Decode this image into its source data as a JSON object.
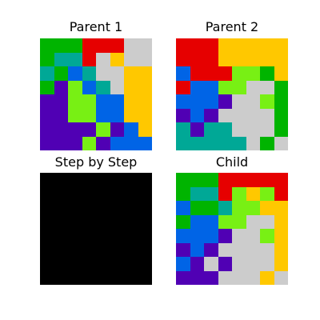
{
  "palette": {
    "G": "#00b400",
    "T": "#00a896",
    "R": "#e60000",
    "L": "#cccccc",
    "Y": "#ffc800",
    "B": "#0064e6",
    "P": "#5000b4",
    "M": "#78f014",
    "K": "#000000"
  },
  "panels": {
    "parent1": {
      "title": "Parent 1",
      "grid": [
        [
          "G",
          "G",
          "G",
          "R",
          "R",
          "R",
          "L",
          "L"
        ],
        [
          "G",
          "T",
          "T",
          "R",
          "L",
          "Y",
          "L",
          "L"
        ],
        [
          "T",
          "G",
          "B",
          "T",
          "L",
          "L",
          "Y",
          "Y"
        ],
        [
          "G",
          "P",
          "M",
          "B",
          "T",
          "L",
          "Y",
          "Y"
        ],
        [
          "P",
          "P",
          "M",
          "M",
          "B",
          "B",
          "Y",
          "Y"
        ],
        [
          "P",
          "P",
          "M",
          "M",
          "B",
          "B",
          "Y",
          "Y"
        ],
        [
          "P",
          "P",
          "P",
          "P",
          "M",
          "P",
          "B",
          "Y"
        ],
        [
          "P",
          "P",
          "P",
          "M",
          "P",
          "B",
          "B",
          "B"
        ]
      ]
    },
    "parent2": {
      "title": "Parent 2",
      "grid": [
        [
          "R",
          "R",
          "R",
          "Y",
          "Y",
          "Y",
          "Y",
          "Y"
        ],
        [
          "R",
          "R",
          "R",
          "Y",
          "Y",
          "Y",
          "Y",
          "Y"
        ],
        [
          "B",
          "R",
          "R",
          "R",
          "M",
          "M",
          "G",
          "Y"
        ],
        [
          "R",
          "B",
          "B",
          "M",
          "M",
          "L",
          "L",
          "G"
        ],
        [
          "B",
          "B",
          "B",
          "P",
          "L",
          "L",
          "M",
          "G"
        ],
        [
          "P",
          "B",
          "P",
          "L",
          "L",
          "L",
          "L",
          "G"
        ],
        [
          "T",
          "P",
          "T",
          "T",
          "L",
          "L",
          "L",
          "G"
        ],
        [
          "T",
          "T",
          "T",
          "T",
          "T",
          "L",
          "G",
          "L"
        ]
      ]
    },
    "step": {
      "title": "Step by Step",
      "grid": [
        [
          "K",
          "K",
          "K",
          "K",
          "K",
          "K",
          "K",
          "K"
        ],
        [
          "K",
          "K",
          "K",
          "K",
          "K",
          "K",
          "K",
          "K"
        ],
        [
          "K",
          "K",
          "K",
          "K",
          "K",
          "K",
          "K",
          "K"
        ],
        [
          "K",
          "K",
          "K",
          "K",
          "K",
          "K",
          "K",
          "K"
        ],
        [
          "K",
          "K",
          "K",
          "K",
          "K",
          "K",
          "K",
          "K"
        ],
        [
          "K",
          "K",
          "K",
          "K",
          "K",
          "K",
          "K",
          "K"
        ],
        [
          "K",
          "K",
          "K",
          "K",
          "K",
          "K",
          "K",
          "K"
        ],
        [
          "K",
          "K",
          "K",
          "K",
          "K",
          "K",
          "K",
          "K"
        ]
      ]
    },
    "child": {
      "title": "Child",
      "grid": [
        [
          "G",
          "G",
          "G",
          "R",
          "R",
          "R",
          "R",
          "R"
        ],
        [
          "G",
          "T",
          "T",
          "R",
          "M",
          "Y",
          "M",
          "R"
        ],
        [
          "B",
          "G",
          "G",
          "T",
          "M",
          "M",
          "Y",
          "Y"
        ],
        [
          "G",
          "B",
          "B",
          "M",
          "M",
          "L",
          "L",
          "Y"
        ],
        [
          "B",
          "B",
          "B",
          "P",
          "L",
          "L",
          "M",
          "Y"
        ],
        [
          "P",
          "B",
          "P",
          "L",
          "L",
          "L",
          "L",
          "Y"
        ],
        [
          "B",
          "P",
          "L",
          "P",
          "L",
          "L",
          "L",
          "Y"
        ],
        [
          "P",
          "P",
          "P",
          "L",
          "L",
          "L",
          "Y",
          "L"
        ]
      ]
    }
  }
}
